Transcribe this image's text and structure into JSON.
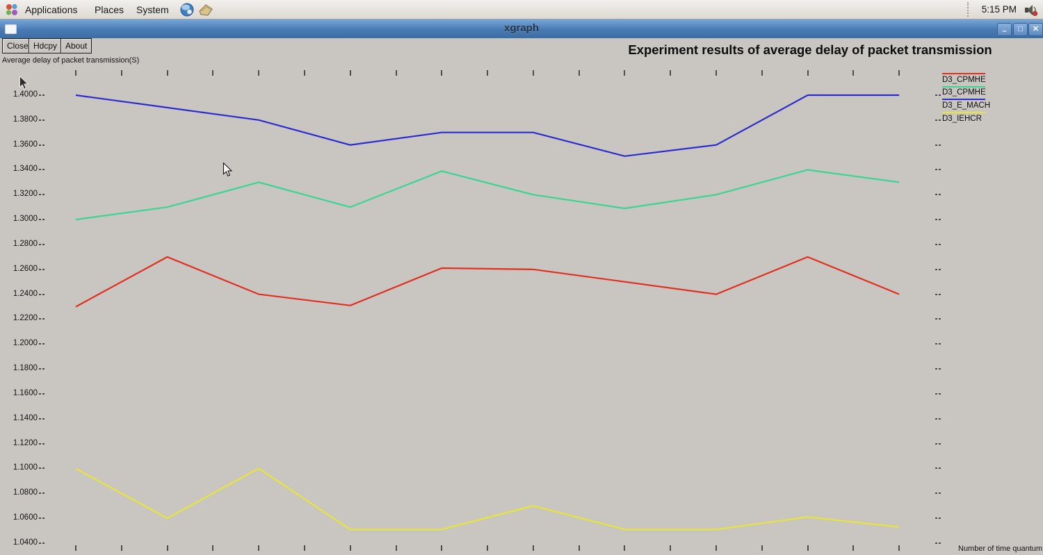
{
  "panel": {
    "menus": [
      "Applications",
      "Places",
      "System"
    ],
    "clock": "5:15 PM"
  },
  "window": {
    "title": "xgraph",
    "buttons": [
      "Close",
      "Hdcpy",
      "About"
    ]
  },
  "chart_data": {
    "type": "line",
    "title": "Experiment results of average delay of packet transmission",
    "ylabel": "Average delay of packet transmission(S)",
    "xlabel": "Number of time quantum",
    "ylim": [
      1.04,
      1.4
    ],
    "ytick_step": 0.02,
    "yticks": [
      "1.4000",
      "1.3800",
      "1.3600",
      "1.3400",
      "1.3200",
      "1.3000",
      "1.2800",
      "1.2600",
      "1.2400",
      "1.2200",
      "1.2000",
      "1.1800",
      "1.1600",
      "1.1400",
      "1.1200",
      "1.1000",
      "1.0800",
      "1.0600",
      "1.0400"
    ],
    "x": [
      1,
      2,
      3,
      4,
      5,
      6,
      7,
      8,
      9,
      10
    ],
    "xtick_count": 19,
    "grid": false,
    "legend_position": "top-right",
    "series": [
      {
        "name": "D3_CPMHE",
        "color": "#e02f20",
        "values": [
          1.23,
          1.27,
          1.24,
          1.231,
          1.261,
          1.26,
          1.25,
          1.24,
          1.27,
          1.24
        ]
      },
      {
        "name": "D3_CPMHE",
        "color": "#3bd492",
        "values": [
          1.3,
          1.31,
          1.33,
          1.31,
          1.339,
          1.32,
          1.309,
          1.32,
          1.34,
          1.33
        ]
      },
      {
        "name": "D3_E_MACH",
        "color": "#2b2bd0",
        "values": [
          1.4,
          1.39,
          1.38,
          1.36,
          1.37,
          1.37,
          1.351,
          1.36,
          1.4,
          1.4
        ]
      },
      {
        "name": "D3_IEHCR",
        "color": "#e9e43a",
        "values": [
          1.1,
          1.06,
          1.1,
          1.051,
          1.051,
          1.07,
          1.051,
          1.051,
          1.061,
          1.053
        ]
      }
    ]
  }
}
